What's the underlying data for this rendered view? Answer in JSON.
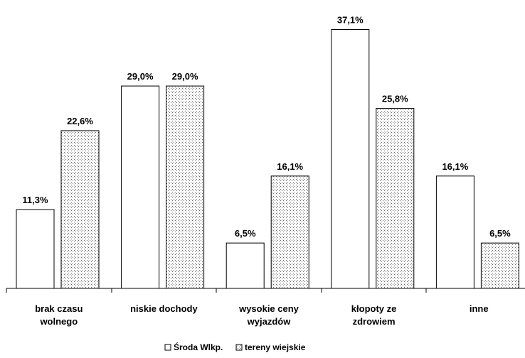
{
  "chart_data": {
    "type": "bar",
    "title": "",
    "xlabel": "",
    "ylabel": "",
    "ylim": [
      0,
      40
    ],
    "grid": false,
    "legend_position": "bottom",
    "categories": [
      [
        "brak czasu",
        "wolnego"
      ],
      [
        "niskie dochody"
      ],
      [
        "wysokie ceny",
        "wyjazdów"
      ],
      [
        "kłopoty ze",
        "zdrowiem"
      ],
      [
        "inne"
      ]
    ],
    "series": [
      {
        "name": "Środa Wlkp.",
        "fill": "plain",
        "values": [
          11.3,
          29.0,
          6.5,
          37.1,
          16.1
        ],
        "labels": [
          "11,3%",
          "29,0%",
          "6,5%",
          "37,1%",
          "16,1%"
        ]
      },
      {
        "name": "tereny wiejskie",
        "fill": "dotted",
        "values": [
          22.6,
          29.0,
          16.1,
          25.8,
          6.5
        ],
        "labels": [
          "22,6%",
          "29,0%",
          "16,1%",
          "25,8%",
          "6,5%"
        ]
      }
    ],
    "colors": {
      "bar_fill": "#ffffff",
      "stroke": "#000000",
      "dot": "#666666"
    }
  }
}
